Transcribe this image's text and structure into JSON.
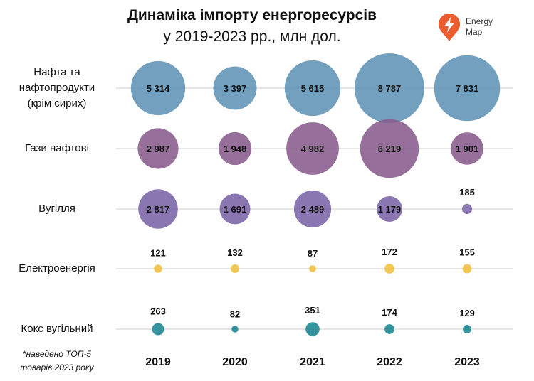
{
  "chart_data": {
    "type": "bubble",
    "title": "Динаміка імпорту енергоресурсів",
    "subtitle": "у 2019-2023 рр., млн дол.",
    "categories": [
      "2019",
      "2020",
      "2021",
      "2022",
      "2023"
    ],
    "series": [
      {
        "name": "Нафта та нафтопродукти (крім сирих)",
        "name_lines": [
          "Нафта та",
          "нафтопродукти",
          "(крім сирих)"
        ],
        "color": "#5f93b5",
        "values": [
          5314,
          3397,
          5615,
          8787,
          7831
        ],
        "value_labels": [
          "5 314",
          "3 397",
          "5 615",
          "8 787",
          "7 831"
        ]
      },
      {
        "name": "Гази нафтові",
        "name_lines": [
          "Гази нафтові"
        ],
        "color": "#885b8c",
        "values": [
          2987,
          1948,
          4982,
          6219,
          1901
        ],
        "value_labels": [
          "2 987",
          "1 948",
          "4 982",
          "6 219",
          "1 901"
        ]
      },
      {
        "name": "Вугілля",
        "name_lines": [
          "Вугілля"
        ],
        "color": "#7a63a5",
        "values": [
          2817,
          1691,
          2489,
          1179,
          185
        ],
        "value_labels": [
          "2 817",
          "1 691",
          "2 489",
          "1 179",
          "185"
        ]
      },
      {
        "name": "Електроенергія",
        "name_lines": [
          "Електроенергія"
        ],
        "color": "#f1bf3e",
        "values": [
          121,
          132,
          87,
          172,
          155
        ],
        "value_labels": [
          "121",
          "132",
          "87",
          "172",
          "155"
        ]
      },
      {
        "name": "Кокс вугільний",
        "name_lines": [
          "Кокс вугільний"
        ],
        "color": "#198591",
        "values": [
          263,
          82,
          351,
          174,
          129
        ],
        "value_labels": [
          "263",
          "82",
          "351",
          "174",
          "129"
        ]
      }
    ],
    "footnote": [
      "*наведено ТОП-5",
      "товарів 2023 року"
    ],
    "grid": true
  },
  "logo": {
    "line1": "Energy",
    "line2": "Map",
    "accent": "#ec5b2e"
  },
  "colors": {
    "gridline": "#e6e6e6",
    "text": "#111111"
  }
}
